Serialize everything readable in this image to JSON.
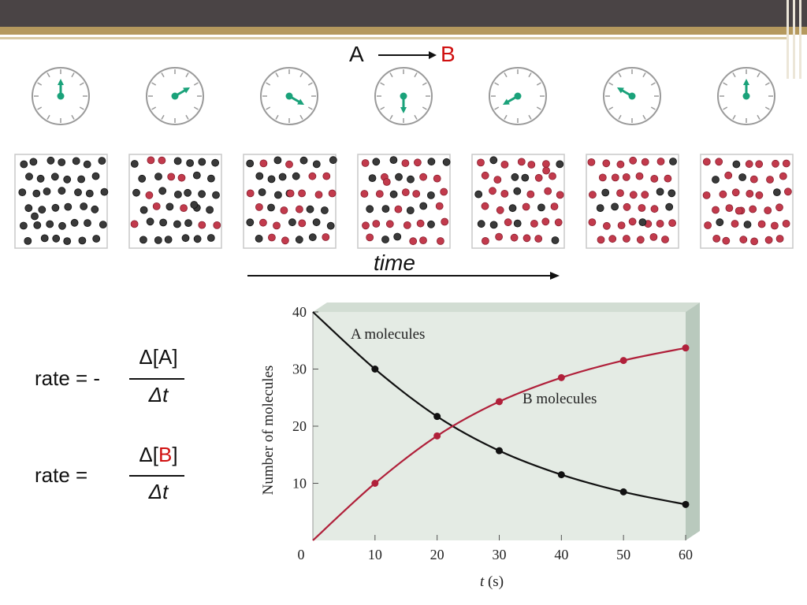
{
  "reaction": {
    "reactant": "A",
    "product": "B"
  },
  "colors": {
    "A": "#3a3a3a",
    "B": "#c23a4c",
    "clock_hand": "#1aa27a"
  },
  "clocks": {
    "hand_angles_deg": [
      0,
      60,
      120,
      180,
      240,
      300,
      360
    ]
  },
  "boxes": {
    "red_counts": [
      0,
      10,
      18,
      24,
      28,
      32,
      34
    ],
    "total": 40
  },
  "time_label": "time",
  "equations": {
    "rate_a": {
      "lhs": "rate = -",
      "num_delta": "Δ[",
      "num_species": "A",
      "num_close": "]",
      "den": "Δt"
    },
    "rate_b": {
      "lhs": "rate =",
      "num_delta": "Δ[",
      "num_species": "B",
      "num_close": "]",
      "den": "Δt"
    }
  },
  "chart_data": {
    "type": "line",
    "x": [
      0,
      10,
      20,
      30,
      40,
      50,
      60
    ],
    "series": [
      {
        "name": "A molecules",
        "values": [
          40,
          30,
          21.7,
          15.7,
          11.5,
          8.5,
          6.3
        ],
        "color": "#111111"
      },
      {
        "name": "B molecules",
        "values": [
          0,
          10,
          18.3,
          24.3,
          28.5,
          31.5,
          33.7
        ],
        "color": "#b0203a"
      }
    ],
    "xlabel": "t (s)",
    "ylabel": "Number of molecules",
    "x_ticks": [
      "0",
      "10",
      "20",
      "30",
      "40",
      "50",
      "60"
    ],
    "y_ticks": [
      "10",
      "20",
      "30",
      "40"
    ],
    "xlim": [
      0,
      60
    ],
    "ylim": [
      0,
      40
    ]
  }
}
